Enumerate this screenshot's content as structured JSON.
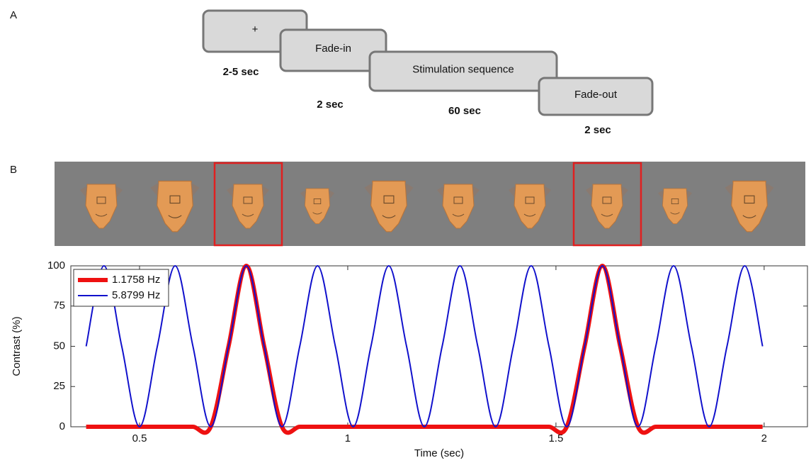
{
  "panel_labels": [
    "A",
    "B"
  ],
  "timeline": [
    {
      "label": "+",
      "duration": "2-5 sec"
    },
    {
      "label": "Fade-in",
      "duration": "2 sec"
    },
    {
      "label": "Stimulation sequence",
      "duration": "60 sec"
    },
    {
      "label": "Fade-out",
      "duration": "2 sec"
    }
  ],
  "chart_data": {
    "type": "line",
    "x_label": "Time (sec)",
    "y_label": "Contrast (%)",
    "x": [
      0.37175,
      0.4145,
      0.45725,
      0.5,
      0.54275,
      0.5855,
      0.62825,
      0.671,
      0.71375,
      0.7565,
      0.79925,
      0.842,
      0.88475,
      0.9275,
      0.97025,
      1.013,
      1.05575,
      1.0985,
      1.14125,
      1.184,
      1.22675,
      1.2695,
      1.31225,
      1.355,
      1.39775,
      1.4405,
      1.48325,
      1.526,
      1.56875,
      1.6115,
      1.65425,
      1.697,
      1.73975,
      1.7825,
      1.82525,
      1.868,
      1.91075,
      1.9535,
      1.99625
    ],
    "series": [
      {
        "name": "1.1758 Hz",
        "color": "#ee1111",
        "values": [
          0,
          0,
          0,
          0,
          0,
          0,
          0,
          0,
          50,
          100,
          50,
          0,
          0,
          0,
          0,
          0,
          0,
          0,
          0,
          0,
          0,
          0,
          0,
          0,
          0,
          0,
          0,
          0,
          50,
          100,
          50,
          0,
          0,
          0,
          0,
          0,
          0,
          0,
          0
        ]
      },
      {
        "name": "5.8799 Hz",
        "color": "#1111cc",
        "values": [
          50,
          100,
          50,
          0,
          50,
          100,
          50,
          0,
          50,
          100,
          50,
          0,
          50,
          100,
          50,
          0,
          50,
          100,
          50,
          0,
          50,
          100,
          50,
          0,
          50,
          100,
          50,
          0,
          50,
          100,
          50,
          0,
          50,
          100,
          50,
          0,
          50,
          100,
          50
        ]
      }
    ],
    "xlim": [
      0.335,
      2.104
    ],
    "ylim": [
      0,
      100
    ],
    "xticks": [
      0.5,
      1,
      1.5,
      2
    ],
    "yticks": [
      0,
      25,
      50,
      75,
      100
    ],
    "legend": "upper left"
  }
}
